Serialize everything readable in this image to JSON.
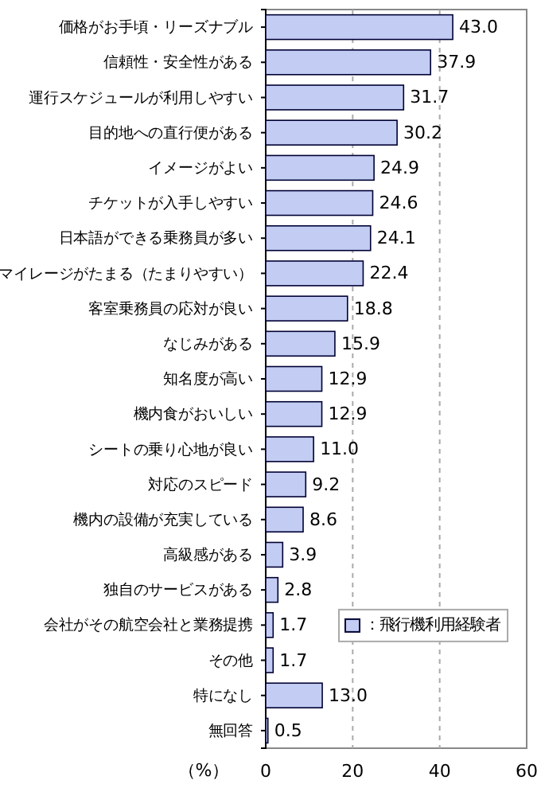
{
  "chart_data": {
    "type": "bar",
    "orientation": "horizontal",
    "xlabel": "（%）",
    "categories": [
      "価格がお手頃・リーズナブル",
      "信頼性・安全性がある",
      "運行スケジュールが利用しやすい",
      "目的地への直行便がある",
      "イメージがよい",
      "チケットが入手しやすい",
      "日本語ができる乗務員が多い",
      "マイレージがたまる（たまりやすい）",
      "客室乗務員の応対が良い",
      "なじみがある",
      "知名度が高い",
      "機内食がおいしい",
      "シートの乗り心地が良い",
      "対応のスピード",
      "機内の設備が充実している",
      "高級感がある",
      "独自のサービスがある",
      "会社がその航空会社と業務提携",
      "その他",
      "特になし",
      "無回答"
    ],
    "series": [
      {
        "name": "：飛行機利用経験者",
        "color": "#c3cdf3",
        "values": [
          43.0,
          37.9,
          31.7,
          30.2,
          24.9,
          24.6,
          24.1,
          22.4,
          18.8,
          15.9,
          12.9,
          12.9,
          11.0,
          9.2,
          8.6,
          3.9,
          2.8,
          1.7,
          1.7,
          13.0,
          0.5
        ]
      }
    ],
    "value_labels": [
      "43.0",
      "37.9",
      "31.7",
      "30.2",
      "24.9",
      "24.6",
      "24.1",
      "22.4",
      "18.8",
      "15.9",
      "12.9",
      "12.9",
      "11.0",
      "9.2",
      "8.6",
      "3.9",
      "2.8",
      "1.7",
      "1.7",
      "13.0",
      "0.5"
    ],
    "xlim": [
      0,
      60
    ],
    "xticks": [
      0,
      20,
      40,
      60
    ],
    "grid": "x",
    "legend": "bottom right"
  }
}
